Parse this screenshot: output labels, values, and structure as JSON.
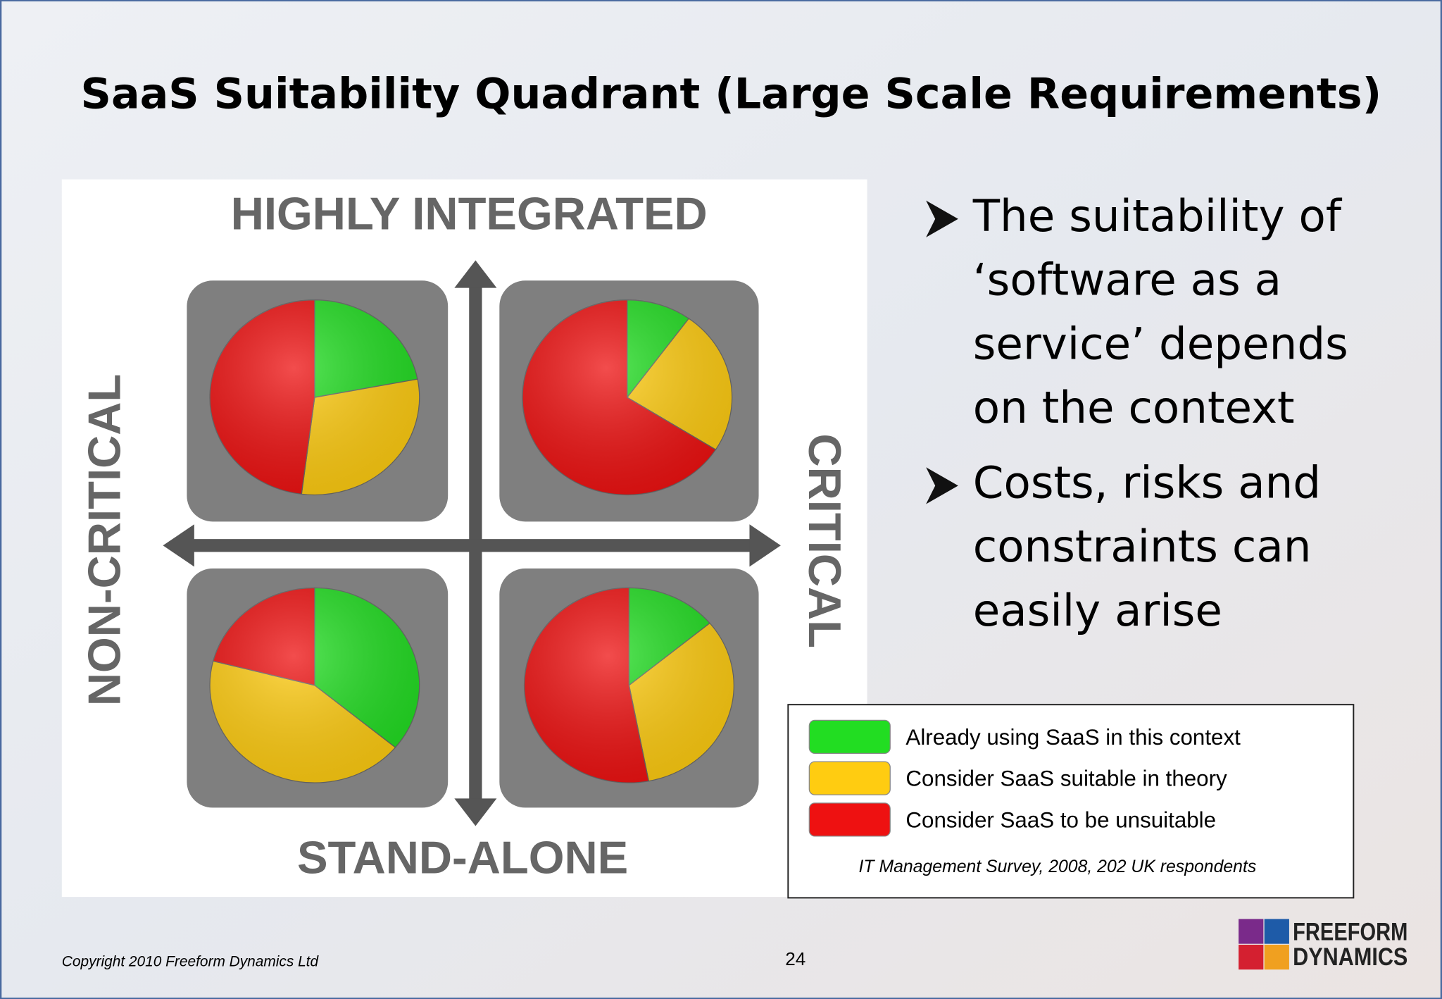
{
  "title": "SaaS Suitability Quadrant (Large Scale Requirements)",
  "axes": {
    "top": "HIGHLY INTEGRATED",
    "bottom": "STAND-ALONE",
    "left": "NON-CRITICAL",
    "right": "CRITICAL"
  },
  "chart_data": [
    {
      "type": "pie",
      "values": [
        22,
        30,
        48
      ]
    },
    {
      "type": "pie",
      "values": [
        10,
        24,
        66
      ]
    },
    {
      "type": "pie",
      "values": [
        36,
        43,
        21
      ]
    },
    {
      "type": "pie",
      "values": [
        14,
        33,
        53
      ]
    }
  ],
  "legend": {
    "items": [
      {
        "label": "Already using SaaS in this context",
        "color": "#22dd22"
      },
      {
        "label": "Consider SaaS suitable in theory",
        "color": "#ffcc11"
      },
      {
        "label": "Consider SaaS to be unsuitable",
        "color": "#ee1111"
      }
    ],
    "source": "IT Management Survey, 2008, 202 UK respondents"
  },
  "bullets": [
    {
      "lines": [
        "The suitability of",
        "‘software as a",
        "service’ depends",
        "on the context"
      ]
    },
    {
      "lines": [
        "Costs, risks and",
        "constraints can",
        "easily arise"
      ]
    }
  ],
  "footer": {
    "copyright": "Copyright 2010 Freeform Dynamics Ltd",
    "page": "24",
    "logo": [
      "FREEFORM",
      "DYNAMICS"
    ]
  }
}
